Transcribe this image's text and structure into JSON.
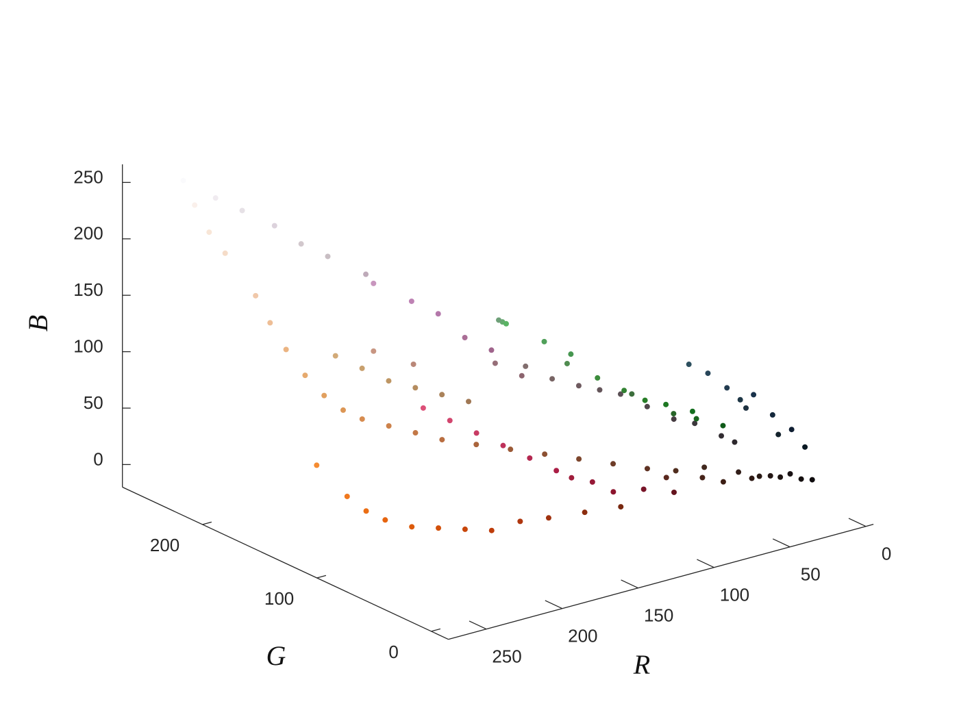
{
  "chart_data": {
    "type": "scatter3d",
    "xlabel": "R",
    "ylabel": "G",
    "zlabel": "B",
    "xlim": [
      -5,
      275
    ],
    "ylim": [
      -15,
      270
    ],
    "zlim": [
      -20,
      266
    ],
    "xticks": [
      0,
      50,
      100,
      150,
      200,
      250
    ],
    "yticks": [
      0,
      100,
      200
    ],
    "zticks": [
      0,
      50,
      100,
      150,
      200,
      250
    ],
    "x": [
      250,
      248,
      245,
      240,
      238,
      235,
      230,
      225,
      220,
      215,
      205,
      195,
      185,
      170,
      155,
      140,
      125,
      110,
      95,
      80,
      65,
      50,
      40,
      30,
      25,
      250,
      240,
      230,
      220,
      210,
      200,
      190,
      200,
      190,
      180,
      170,
      160,
      150,
      140,
      130,
      120,
      110,
      100,
      90,
      80,
      70,
      60,
      50,
      45,
      220,
      210,
      200,
      190,
      180,
      170,
      160,
      150,
      140,
      120,
      100,
      240,
      235,
      230,
      220,
      210,
      200,
      190,
      175,
      160,
      140,
      120,
      245,
      210,
      200,
      190,
      180,
      170,
      160,
      200,
      185,
      100,
      90,
      80,
      70,
      60,
      50,
      40,
      30,
      20,
      40,
      60,
      110,
      80,
      25,
      15,
      40,
      35,
      30,
      25,
      45,
      20,
      15,
      30,
      20,
      10,
      90,
      70,
      60,
      45,
      35,
      20,
      15
    ],
    "y": [
      240,
      230,
      220,
      200,
      190,
      180,
      170,
      160,
      150,
      140,
      130,
      120,
      110,
      100,
      90,
      80,
      70,
      60,
      50,
      45,
      40,
      30,
      25,
      20,
      18,
      250,
      235,
      225,
      210,
      200,
      190,
      170,
      150,
      130,
      120,
      110,
      100,
      110,
      100,
      110,
      100,
      90,
      85,
      80,
      70,
      60,
      55,
      45,
      40,
      80,
      70,
      60,
      50,
      40,
      30,
      30,
      25,
      20,
      20,
      20,
      120,
      110,
      100,
      90,
      80,
      70,
      60,
      55,
      50,
      45,
      40,
      140,
      170,
      160,
      150,
      140,
      130,
      120,
      150,
      135,
      170,
      180,
      160,
      150,
      140,
      130,
      125,
      120,
      110,
      100,
      110,
      160,
      140,
      100,
      90,
      70,
      60,
      55,
      50,
      80,
      40,
      30,
      50,
      35,
      25,
      40,
      35,
      30,
      25,
      22,
      15,
      12
    ],
    "z": [
      235,
      215,
      200,
      170,
      150,
      130,
      110,
      95,
      85,
      80,
      75,
      70,
      65,
      60,
      55,
      50,
      45,
      40,
      35,
      30,
      30,
      25,
      20,
      18,
      20,
      252,
      240,
      230,
      220,
      205,
      195,
      185,
      190,
      180,
      170,
      150,
      140,
      120,
      110,
      110,
      100,
      95,
      90,
      85,
      75,
      65,
      60,
      50,
      45,
      120,
      110,
      100,
      90,
      80,
      70,
      60,
      55,
      45,
      40,
      30,
      30,
      20,
      15,
      10,
      10,
      10,
      10,
      15,
      15,
      15,
      15,
      50,
      120,
      110,
      100,
      95,
      90,
      85,
      130,
      120,
      110,
      100,
      90,
      80,
      60,
      50,
      40,
      35,
      30,
      40,
      60,
      120,
      80,
      30,
      25,
      90,
      80,
      70,
      75,
      95,
      60,
      50,
      65,
      45,
      35,
      30,
      25,
      20,
      20,
      20,
      15,
      14
    ]
  }
}
